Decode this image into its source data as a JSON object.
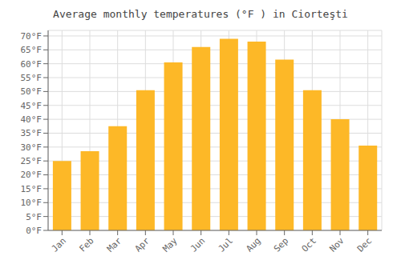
{
  "chart_data": {
    "type": "bar",
    "title": "Average monthly temperatures (°F ) in Ciorteşti",
    "categories": [
      "Jan",
      "Feb",
      "Mar",
      "Apr",
      "May",
      "Jun",
      "Jul",
      "Aug",
      "Sep",
      "Oct",
      "Nov",
      "Dec"
    ],
    "values": [
      25,
      28.5,
      37.5,
      50.5,
      60.5,
      66,
      69,
      68,
      61.5,
      50.5,
      40,
      30.5
    ],
    "color": "#FDB827",
    "ylim": [
      0,
      72
    ],
    "yticks": [
      {
        "value": 0,
        "label": "0°F"
      },
      {
        "value": 5,
        "label": "5°F"
      },
      {
        "value": 10,
        "label": "10°F"
      },
      {
        "value": 15,
        "label": "15°F"
      },
      {
        "value": 20,
        "label": "20°F"
      },
      {
        "value": 25,
        "label": "25°F"
      },
      {
        "value": 30,
        "label": "30°F"
      },
      {
        "value": 35,
        "label": "35°F"
      },
      {
        "value": 40,
        "label": "40°F"
      },
      {
        "value": 45,
        "label": "45°F"
      },
      {
        "value": 50,
        "label": "50°F"
      },
      {
        "value": 55,
        "label": "55°F"
      },
      {
        "value": 60,
        "label": "60°F"
      },
      {
        "value": 65,
        "label": "65°F"
      },
      {
        "value": 70,
        "label": "70°F"
      }
    ],
    "grid": true
  }
}
